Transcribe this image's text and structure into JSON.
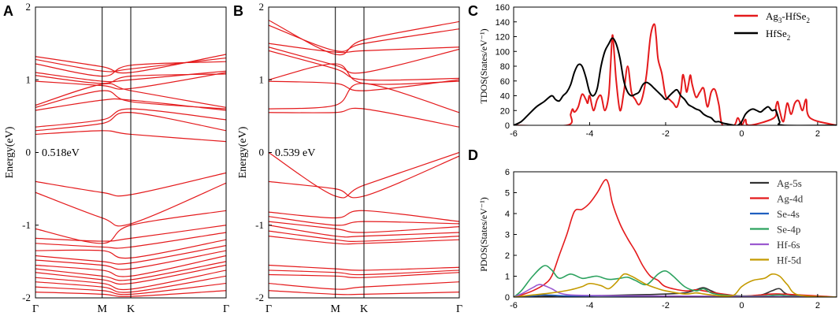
{
  "figure": {
    "panel_letters": [
      "A",
      "B",
      "C",
      "D"
    ],
    "colors": {
      "band": "#e41a1c",
      "axis": "#000000",
      "pdos_text": "#333333"
    }
  },
  "chart_data": [
    {
      "id": "A",
      "type": "line",
      "title": "",
      "ylabel": "Energy(eV)",
      "ylim": [
        -2,
        2
      ],
      "yticks": [
        "-2",
        "-1",
        "0",
        "1",
        "2"
      ],
      "xticks": [
        "Γ",
        "M",
        "K",
        "Γ"
      ],
      "kpoints": [
        0,
        0.35,
        0.5,
        1.0
      ],
      "gap_label": "0.518eV",
      "gap_value_eV": 0.518,
      "bands": [
        [
          1.32,
          1.18,
          1.1,
          1.35
        ],
        [
          1.28,
          1.12,
          1.15,
          1.3
        ],
        [
          1.22,
          1.05,
          1.2,
          1.25
        ],
        [
          1.1,
          0.98,
          1.0,
          1.12
        ],
        [
          1.06,
          0.95,
          1.05,
          1.08
        ],
        [
          0.98,
          0.92,
          0.88,
          1.1
        ],
        [
          0.65,
          0.94,
          0.85,
          0.62
        ],
        [
          0.62,
          0.85,
          0.7,
          0.6
        ],
        [
          0.58,
          0.72,
          0.72,
          0.58
        ],
        [
          0.35,
          0.45,
          0.6,
          0.45
        ],
        [
          0.3,
          0.4,
          0.55,
          0.3
        ],
        [
          0.25,
          0.3,
          0.25,
          0.15
        ],
        [
          -0.4,
          -0.55,
          -0.58,
          -0.28
        ],
        [
          -0.55,
          -0.9,
          -0.98,
          -0.42
        ],
        [
          -1.05,
          -1.25,
          -1.0,
          -0.8
        ],
        [
          -1.18,
          -1.22,
          -1.18,
          -1.0
        ],
        [
          -1.25,
          -1.3,
          -1.3,
          -1.1
        ],
        [
          -1.35,
          -1.35,
          -1.45,
          -1.2
        ],
        [
          -1.42,
          -1.5,
          -1.52,
          -1.28
        ],
        [
          -1.48,
          -1.55,
          -1.6,
          -1.35
        ],
        [
          -1.55,
          -1.62,
          -1.7,
          -1.42
        ],
        [
          -1.6,
          -1.7,
          -1.75,
          -1.5
        ],
        [
          -1.65,
          -1.75,
          -1.8,
          -1.55
        ],
        [
          -1.72,
          -1.8,
          -1.88,
          -1.62
        ],
        [
          -1.78,
          -1.85,
          -1.92,
          -1.7
        ],
        [
          -1.85,
          -1.9,
          -1.95,
          -1.8
        ],
        [
          -1.92,
          -1.95,
          -1.98,
          -1.9
        ]
      ]
    },
    {
      "id": "B",
      "type": "line",
      "title": "",
      "ylabel": "Energy(eV)",
      "ylim": [
        -2,
        2
      ],
      "yticks": [
        "-2",
        "-1",
        "0",
        "1",
        "2"
      ],
      "xticks": [
        "Γ",
        "M",
        "K",
        "Γ"
      ],
      "kpoints": [
        0,
        0.35,
        0.5,
        1.0
      ],
      "gap_label": "0.539 eV",
      "gap_value_eV": 0.539,
      "bands": [
        [
          1.82,
          1.35,
          1.55,
          1.8
        ],
        [
          1.75,
          1.4,
          1.5,
          1.7
        ],
        [
          1.5,
          1.38,
          1.4,
          1.45
        ],
        [
          1.45,
          1.2,
          1.1,
          1.42
        ],
        [
          1.4,
          1.15,
          1.0,
          1.02
        ],
        [
          1.0,
          1.22,
          0.95,
          0.98
        ],
        [
          0.98,
          0.95,
          0.85,
          1.0
        ],
        [
          0.6,
          0.65,
          0.95,
          0.55
        ],
        [
          0.55,
          0.55,
          0.6,
          0.35
        ],
        [
          0.0,
          -0.6,
          -0.45,
          0.0
        ],
        [
          -0.4,
          -0.5,
          -0.6,
          -0.05
        ],
        [
          -0.82,
          -0.9,
          -0.8,
          -0.95
        ],
        [
          -0.88,
          -1.0,
          -0.95,
          -0.98
        ],
        [
          -0.95,
          -1.05,
          -1.1,
          -1.02
        ],
        [
          -1.0,
          -1.15,
          -1.15,
          -1.1
        ],
        [
          -1.08,
          -1.2,
          -1.22,
          -1.15
        ],
        [
          -1.15,
          -1.25,
          -1.25,
          -1.2
        ],
        [
          -1.55,
          -1.6,
          -1.62,
          -1.58
        ],
        [
          -1.62,
          -1.65,
          -1.68,
          -1.62
        ],
        [
          -1.68,
          -1.7,
          -1.72,
          -1.65
        ],
        [
          -1.8,
          -1.88,
          -1.85,
          -1.78
        ],
        [
          -1.9,
          -1.95,
          -1.95,
          -1.92
        ]
      ]
    },
    {
      "id": "C",
      "type": "line",
      "title": "",
      "ylabel": "TDOS(States/eV⁻¹)",
      "xlim": [
        -6,
        2.5
      ],
      "ylim": [
        0,
        160
      ],
      "xticks": [
        "-6",
        "-4",
        "-2",
        "0",
        "2"
      ],
      "yticks": [
        "0",
        "20",
        "40",
        "60",
        "80",
        "100",
        "120",
        "140",
        "160"
      ],
      "legend_position": "top-right",
      "series": [
        {
          "name": "Ag3-HfSe2",
          "label_main": "Ag",
          "label_sub": "3",
          "label_tail": "-HfSe",
          "label_tail_sub": "2",
          "color": "#e41a1c",
          "x": [
            -6,
            -4.6,
            -4.5,
            -4.45,
            -4.4,
            -4.3,
            -4.2,
            -4.1,
            -4.05,
            -4.0,
            -3.9,
            -3.8,
            -3.7,
            -3.6,
            -3.5,
            -3.45,
            -3.4,
            -3.35,
            -3.3,
            -3.2,
            -3.1,
            -3.0,
            -2.9,
            -2.8,
            -2.7,
            -2.6,
            -2.5,
            -2.4,
            -2.3,
            -2.25,
            -2.2,
            -2.1,
            -2.0,
            -1.9,
            -1.8,
            -1.7,
            -1.6,
            -1.55,
            -1.5,
            -1.45,
            -1.4,
            -1.35,
            -1.3,
            -1.2,
            -1.1,
            -1.0,
            -0.9,
            -0.8,
            -0.7,
            -0.6,
            -0.5,
            -0.2,
            -0.1,
            0.0,
            0.1,
            0.2,
            0.85,
            0.9,
            0.95,
            1.0,
            1.1,
            1.2,
            1.3,
            1.4,
            1.5,
            1.6,
            1.7,
            1.8,
            2.5
          ],
          "y": [
            0,
            0,
            15,
            22,
            18,
            25,
            42,
            35,
            30,
            40,
            20,
            35,
            40,
            20,
            40,
            80,
            122,
            95,
            60,
            20,
            45,
            80,
            45,
            35,
            28,
            40,
            70,
            120,
            137,
            120,
            90,
            70,
            40,
            35,
            30,
            25,
            45,
            68,
            60,
            45,
            55,
            68,
            55,
            38,
            45,
            50,
            25,
            45,
            48,
            28,
            0,
            0,
            10,
            0,
            8,
            0,
            10,
            25,
            32,
            20,
            5,
            30,
            15,
            30,
            33,
            20,
            35,
            10,
            0
          ]
        },
        {
          "name": "HfSe2",
          "label_main": "HfSe",
          "label_sub": "2",
          "label_tail": "",
          "label_tail_sub": "",
          "color": "#000000",
          "x": [
            -6,
            -5.8,
            -5.6,
            -5.4,
            -5.2,
            -5.0,
            -4.9,
            -4.8,
            -4.7,
            -4.6,
            -4.5,
            -4.4,
            -4.3,
            -4.2,
            -4.1,
            -4.0,
            -3.9,
            -3.8,
            -3.7,
            -3.6,
            -3.5,
            -3.4,
            -3.3,
            -3.2,
            -3.1,
            -3.0,
            -2.9,
            -2.8,
            -2.7,
            -2.6,
            -2.5,
            -2.4,
            -2.3,
            -2.2,
            -2.1,
            -2.0,
            -1.9,
            -1.8,
            -1.7,
            -1.6,
            -1.5,
            -1.4,
            -1.3,
            -1.2,
            -1.1,
            -1.0,
            -0.9,
            -0.8,
            -0.7,
            -0.6,
            -0.5,
            -0.4,
            -0.3,
            -0.2,
            -0.1,
            0.0,
            0.1,
            0.2,
            0.3,
            0.4,
            0.5,
            0.6,
            0.7,
            0.8,
            0.9,
            1.0,
            1.1,
            2.5
          ],
          "y": [
            0,
            5,
            15,
            25,
            32,
            40,
            35,
            33,
            40,
            45,
            55,
            72,
            82,
            80,
            65,
            45,
            40,
            50,
            80,
            100,
            110,
            118,
            110,
            90,
            60,
            45,
            40,
            42,
            45,
            55,
            58,
            55,
            50,
            45,
            40,
            35,
            40,
            45,
            48,
            40,
            35,
            28,
            25,
            22,
            20,
            15,
            12,
            10,
            5,
            5,
            3,
            2,
            1,
            0,
            0,
            5,
            15,
            20,
            22,
            20,
            18,
            22,
            25,
            20,
            20,
            5,
            0,
            0
          ]
        }
      ]
    },
    {
      "id": "D",
      "type": "line",
      "title": "",
      "ylabel": "PDOS(States/eV⁻¹)",
      "xlim": [
        -6,
        2.5
      ],
      "ylim": [
        0,
        6
      ],
      "xticks": [
        "-6",
        "-4",
        "-2",
        "0",
        "2"
      ],
      "yticks": [
        "0",
        "1",
        "2",
        "3",
        "4",
        "5",
        "6"
      ],
      "legend_position": "top-right",
      "series": [
        {
          "name": "Ag-5s",
          "color": "#333333",
          "x": [
            -6,
            -5.5,
            -5.0,
            -4.5,
            -4.0,
            -3.5,
            -3.0,
            -2.5,
            -2.0,
            -1.5,
            -1.2,
            -1.0,
            -0.8,
            -0.5,
            0.0,
            0.5,
            0.8,
            1.0,
            1.3,
            2.5
          ],
          "y": [
            0,
            0.02,
            0.05,
            0.05,
            0.06,
            0.08,
            0.1,
            0.12,
            0.15,
            0.2,
            0.35,
            0.45,
            0.3,
            0.1,
            0.05,
            0.1,
            0.3,
            0.4,
            0.1,
            0
          ]
        },
        {
          "name": "Ag-4d",
          "color": "#e41a1c",
          "x": [
            -6,
            -5.8,
            -5.5,
            -5.2,
            -5.0,
            -4.8,
            -4.6,
            -4.4,
            -4.2,
            -4.0,
            -3.8,
            -3.6,
            -3.5,
            -3.4,
            -3.2,
            -3.0,
            -2.8,
            -2.6,
            -2.4,
            -2.2,
            -2.0,
            -1.5,
            -1.2,
            -1.0,
            -0.5,
            0.0,
            0.5,
            1.0,
            2.5
          ],
          "y": [
            0,
            0.1,
            0.3,
            0.6,
            1.0,
            2.0,
            3.0,
            4.1,
            4.2,
            4.5,
            5.0,
            5.6,
            5.4,
            4.5,
            3.5,
            2.8,
            2.2,
            1.5,
            1.0,
            0.8,
            0.5,
            0.3,
            0.35,
            0.3,
            0.15,
            0.05,
            0.1,
            0.15,
            0
          ]
        },
        {
          "name": "Se-4s",
          "color": "#1f5fbf",
          "x": [
            -6,
            -5.5,
            -5.2,
            -4.5,
            -4.0,
            -3.0,
            -2.0,
            -1.0,
            0.0,
            1.0,
            2.5
          ],
          "y": [
            0,
            0.05,
            0.1,
            0.05,
            0.06,
            0.05,
            0.04,
            0.03,
            0.02,
            0.02,
            0
          ]
        },
        {
          "name": "Se-4p",
          "color": "#2ca25f",
          "x": [
            -6,
            -5.8,
            -5.5,
            -5.2,
            -5.0,
            -4.8,
            -4.5,
            -4.2,
            -4.0,
            -3.8,
            -3.5,
            -3.2,
            -3.0,
            -2.8,
            -2.5,
            -2.2,
            -2.0,
            -1.8,
            -1.5,
            -1.2,
            -1.0,
            -0.8,
            -0.5,
            0.0,
            0.5,
            1.0,
            1.3,
            2.5
          ],
          "y": [
            0,
            0.3,
            1.0,
            1.5,
            1.3,
            0.9,
            1.1,
            0.9,
            0.95,
            1.0,
            0.85,
            0.9,
            0.95,
            0.8,
            0.6,
            1.1,
            1.25,
            1.0,
            0.5,
            0.3,
            0.4,
            0.2,
            0.1,
            0.05,
            0.05,
            0.1,
            0.05,
            0
          ]
        },
        {
          "name": "Hf-6s",
          "color": "#9b59d0",
          "x": [
            -6,
            -5.8,
            -5.5,
            -5.3,
            -5.0,
            -4.8,
            -4.5,
            -4.0,
            -3.0,
            -2.0,
            -1.0,
            0.0,
            1.0,
            2.5
          ],
          "y": [
            0,
            0.15,
            0.45,
            0.6,
            0.4,
            0.2,
            0.1,
            0.08,
            0.06,
            0.05,
            0.04,
            0.03,
            0.02,
            0
          ]
        },
        {
          "name": "Hf-5d",
          "color": "#c49a00",
          "x": [
            -6,
            -5.5,
            -5.0,
            -4.5,
            -4.2,
            -4.0,
            -3.7,
            -3.5,
            -3.3,
            -3.1,
            -2.9,
            -2.7,
            -2.5,
            -2.2,
            -2.0,
            -1.5,
            -1.2,
            -1.0,
            -0.8,
            -0.5,
            -0.2,
            0.0,
            0.3,
            0.6,
            0.8,
            1.0,
            1.2,
            1.5,
            2.5
          ],
          "y": [
            0,
            0.1,
            0.2,
            0.35,
            0.5,
            0.65,
            0.55,
            0.4,
            0.7,
            1.1,
            1.0,
            0.8,
            0.6,
            0.4,
            0.3,
            0.15,
            0.2,
            0.15,
            0.1,
            0.05,
            0.1,
            0.5,
            0.8,
            0.9,
            1.1,
            1.0,
            0.6,
            0.1,
            0
          ]
        }
      ]
    }
  ]
}
